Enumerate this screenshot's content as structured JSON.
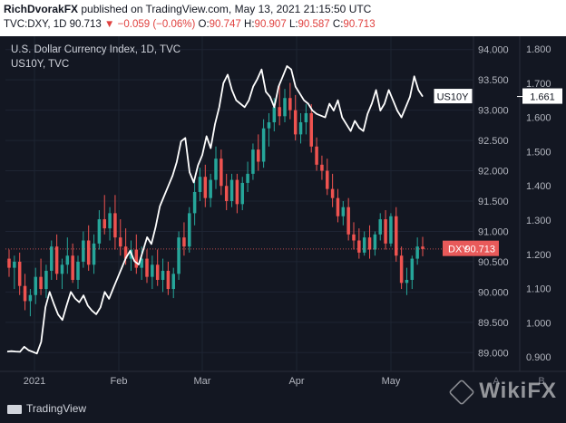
{
  "header": {
    "author": "RichDvorakFX",
    "published": "published on TradingView.com, May 13, 2021 21:15:50 UTC",
    "symbol": "TVC:DXY, 1D",
    "last": "90.713",
    "change": "−0.059 (−0.06%)",
    "open": "90.747",
    "high": "90.907",
    "low": "90.587",
    "close": "90.713",
    "colors": {
      "down": "#e0413f",
      "text": "#131722"
    }
  },
  "legend": {
    "main": "U.S. Dollar Currency Index, 1D, TVC",
    "overlay": "US10Y, TVC"
  },
  "chart_data": {
    "type": "candlestick+line",
    "x_labels": [
      "2021",
      "Feb",
      "Mar",
      "Apr",
      "May"
    ],
    "right_axis_dxy": {
      "ticks": [
        "94.000",
        "93.500",
        "93.000",
        "92.500",
        "92.000",
        "91.500",
        "91.000",
        "90.500",
        "90.000",
        "89.500",
        "89.000"
      ],
      "range": [
        88.9,
        94.1
      ]
    },
    "right_axis_us10y": {
      "ticks": [
        "1.800",
        "1.700",
        "1.600",
        "1.500",
        "1.400",
        "1.300",
        "1.200",
        "1.100",
        "1.000",
        "0.900"
      ],
      "range": [
        0.895,
        1.816
      ]
    },
    "scale_labels": [
      "A",
      "B"
    ],
    "price_tag_dxy": {
      "label": "DXY",
      "value": "90.713",
      "color": "#e85a5a"
    },
    "price_tag_us10y": {
      "label": "US10Y",
      "value": "1.661"
    },
    "colors": {
      "up": "#26a69a",
      "down": "#ef5350",
      "line": "#ffffff",
      "bg": "#131722",
      "grid": "#1e2433"
    },
    "candles": [
      {
        "o": 90.55,
        "h": 90.7,
        "l": 90.25,
        "c": 90.4
      },
      {
        "o": 90.4,
        "h": 90.6,
        "l": 90.05,
        "c": 90.5
      },
      {
        "o": 90.5,
        "h": 90.65,
        "l": 89.95,
        "c": 90.1
      },
      {
        "o": 90.1,
        "h": 90.3,
        "l": 89.7,
        "c": 89.85
      },
      {
        "o": 89.85,
        "h": 90.05,
        "l": 89.6,
        "c": 89.95
      },
      {
        "o": 89.95,
        "h": 90.4,
        "l": 89.8,
        "c": 90.25
      },
      {
        "o": 90.25,
        "h": 90.55,
        "l": 89.95,
        "c": 90.05
      },
      {
        "o": 90.05,
        "h": 90.45,
        "l": 89.9,
        "c": 90.35
      },
      {
        "o": 90.35,
        "h": 90.85,
        "l": 90.2,
        "c": 90.75
      },
      {
        "o": 90.75,
        "h": 90.95,
        "l": 90.2,
        "c": 90.3
      },
      {
        "o": 90.3,
        "h": 90.55,
        "l": 90.05,
        "c": 90.45
      },
      {
        "o": 90.45,
        "h": 90.9,
        "l": 90.3,
        "c": 90.6
      },
      {
        "o": 90.6,
        "h": 90.8,
        "l": 90.15,
        "c": 90.2
      },
      {
        "o": 90.2,
        "h": 90.6,
        "l": 90.05,
        "c": 90.5
      },
      {
        "o": 90.5,
        "h": 91.0,
        "l": 90.4,
        "c": 90.85
      },
      {
        "o": 90.85,
        "h": 91.1,
        "l": 90.35,
        "c": 90.45
      },
      {
        "o": 90.45,
        "h": 90.95,
        "l": 90.3,
        "c": 90.8
      },
      {
        "o": 90.8,
        "h": 91.35,
        "l": 90.7,
        "c": 91.2
      },
      {
        "o": 91.2,
        "h": 91.6,
        "l": 90.95,
        "c": 91.05
      },
      {
        "o": 91.05,
        "h": 91.4,
        "l": 90.85,
        "c": 91.3
      },
      {
        "o": 91.3,
        "h": 91.6,
        "l": 90.7,
        "c": 90.9
      },
      {
        "o": 90.9,
        "h": 91.2,
        "l": 90.6,
        "c": 90.75
      },
      {
        "o": 90.75,
        "h": 91.05,
        "l": 90.45,
        "c": 90.55
      },
      {
        "o": 90.55,
        "h": 90.85,
        "l": 90.35,
        "c": 90.7
      },
      {
        "o": 90.7,
        "h": 90.95,
        "l": 90.3,
        "c": 90.4
      },
      {
        "o": 90.4,
        "h": 90.75,
        "l": 90.2,
        "c": 90.55
      },
      {
        "o": 90.55,
        "h": 90.7,
        "l": 90.15,
        "c": 90.25
      },
      {
        "o": 90.25,
        "h": 90.6,
        "l": 90.05,
        "c": 90.45
      },
      {
        "o": 90.45,
        "h": 90.7,
        "l": 90.1,
        "c": 90.2
      },
      {
        "o": 90.2,
        "h": 90.55,
        "l": 90.0,
        "c": 90.35
      },
      {
        "o": 90.35,
        "h": 90.5,
        "l": 89.95,
        "c": 90.05
      },
      {
        "o": 90.05,
        "h": 90.4,
        "l": 89.9,
        "c": 90.3
      },
      {
        "o": 90.3,
        "h": 91.0,
        "l": 90.2,
        "c": 90.9
      },
      {
        "o": 90.9,
        "h": 91.15,
        "l": 90.6,
        "c": 90.75
      },
      {
        "o": 90.75,
        "h": 91.4,
        "l": 90.65,
        "c": 91.3
      },
      {
        "o": 91.3,
        "h": 91.85,
        "l": 91.1,
        "c": 91.65
      },
      {
        "o": 91.65,
        "h": 92.05,
        "l": 91.5,
        "c": 91.9
      },
      {
        "o": 91.9,
        "h": 92.1,
        "l": 91.4,
        "c": 91.55
      },
      {
        "o": 91.55,
        "h": 91.95,
        "l": 91.4,
        "c": 91.85
      },
      {
        "o": 91.85,
        "h": 92.4,
        "l": 91.7,
        "c": 92.2
      },
      {
        "o": 92.2,
        "h": 92.35,
        "l": 91.6,
        "c": 91.75
      },
      {
        "o": 91.75,
        "h": 91.95,
        "l": 91.35,
        "c": 91.5
      },
      {
        "o": 91.5,
        "h": 91.95,
        "l": 91.4,
        "c": 91.85
      },
      {
        "o": 91.85,
        "h": 91.95,
        "l": 91.3,
        "c": 91.45
      },
      {
        "o": 91.45,
        "h": 91.9,
        "l": 91.35,
        "c": 91.8
      },
      {
        "o": 91.8,
        "h": 92.15,
        "l": 91.65,
        "c": 91.95
      },
      {
        "o": 91.95,
        "h": 92.45,
        "l": 91.85,
        "c": 92.35
      },
      {
        "o": 92.35,
        "h": 92.6,
        "l": 92.0,
        "c": 92.15
      },
      {
        "o": 92.15,
        "h": 92.85,
        "l": 92.05,
        "c": 92.7
      },
      {
        "o": 92.7,
        "h": 92.95,
        "l": 92.4,
        "c": 92.8
      },
      {
        "o": 92.8,
        "h": 93.2,
        "l": 92.65,
        "c": 93.05
      },
      {
        "o": 93.05,
        "h": 93.45,
        "l": 92.75,
        "c": 92.9
      },
      {
        "o": 92.9,
        "h": 93.35,
        "l": 92.8,
        "c": 93.2
      },
      {
        "o": 93.2,
        "h": 93.45,
        "l": 92.85,
        "c": 93.0
      },
      {
        "o": 93.0,
        "h": 93.25,
        "l": 92.5,
        "c": 92.6
      },
      {
        "o": 92.6,
        "h": 92.95,
        "l": 92.45,
        "c": 92.8
      },
      {
        "o": 92.8,
        "h": 93.1,
        "l": 92.6,
        "c": 92.95
      },
      {
        "o": 92.95,
        "h": 93.1,
        "l": 92.3,
        "c": 92.4
      },
      {
        "o": 92.4,
        "h": 92.55,
        "l": 92.0,
        "c": 92.1
      },
      {
        "o": 92.1,
        "h": 92.25,
        "l": 91.85,
        "c": 92.0
      },
      {
        "o": 92.0,
        "h": 92.2,
        "l": 91.6,
        "c": 91.7
      },
      {
        "o": 91.7,
        "h": 91.95,
        "l": 91.4,
        "c": 91.55
      },
      {
        "o": 91.55,
        "h": 91.7,
        "l": 91.15,
        "c": 91.25
      },
      {
        "o": 91.25,
        "h": 91.5,
        "l": 91.1,
        "c": 91.4
      },
      {
        "o": 91.4,
        "h": 91.55,
        "l": 90.85,
        "c": 90.95
      },
      {
        "o": 90.95,
        "h": 91.15,
        "l": 90.7,
        "c": 90.85
      },
      {
        "o": 90.85,
        "h": 91.05,
        "l": 90.55,
        "c": 90.65
      },
      {
        "o": 90.65,
        "h": 91.0,
        "l": 90.6,
        "c": 90.9
      },
      {
        "o": 90.9,
        "h": 91.1,
        "l": 90.55,
        "c": 90.7
      },
      {
        "o": 90.7,
        "h": 91.0,
        "l": 90.6,
        "c": 90.95
      },
      {
        "o": 90.95,
        "h": 91.3,
        "l": 90.85,
        "c": 91.2
      },
      {
        "o": 91.2,
        "h": 91.35,
        "l": 90.7,
        "c": 90.8
      },
      {
        "o": 90.8,
        "h": 91.3,
        "l": 90.75,
        "c": 91.25
      },
      {
        "o": 91.25,
        "h": 91.4,
        "l": 90.5,
        "c": 90.6
      },
      {
        "o": 90.6,
        "h": 90.75,
        "l": 90.05,
        "c": 90.15
      },
      {
        "o": 90.15,
        "h": 90.4,
        "l": 89.95,
        "c": 90.2
      },
      {
        "o": 90.2,
        "h": 90.6,
        "l": 90.05,
        "c": 90.55
      },
      {
        "o": 90.55,
        "h": 90.9,
        "l": 90.45,
        "c": 90.75
      },
      {
        "o": 90.75,
        "h": 90.91,
        "l": 90.59,
        "c": 90.71
      }
    ],
    "us10y": [
      0.916,
      0.917,
      0.916,
      0.915,
      0.93,
      0.92,
      0.915,
      0.91,
      0.944,
      1.045,
      1.09,
      1.055,
      1.024,
      1.008,
      1.05,
      1.09,
      1.071,
      1.06,
      1.08,
      1.05,
      1.035,
      1.025,
      1.045,
      1.09,
      1.07,
      1.1,
      1.13,
      1.16,
      1.19,
      1.21,
      1.18,
      1.17,
      1.21,
      1.25,
      1.23,
      1.28,
      1.34,
      1.37,
      1.4,
      1.43,
      1.47,
      1.53,
      1.54,
      1.44,
      1.41,
      1.46,
      1.49,
      1.545,
      1.51,
      1.58,
      1.63,
      1.7,
      1.725,
      1.68,
      1.65,
      1.64,
      1.63,
      1.65,
      1.69,
      1.712,
      1.74,
      1.675,
      1.66,
      1.63,
      1.69,
      1.72,
      1.75,
      1.74,
      1.69,
      1.67,
      1.65,
      1.64,
      1.62,
      1.61,
      1.605,
      1.6,
      1.64,
      1.62,
      1.65,
      1.6,
      1.58,
      1.56,
      1.59,
      1.57,
      1.56,
      1.61,
      1.64,
      1.68,
      1.62,
      1.64,
      1.68,
      1.65,
      1.62,
      1.6,
      1.63,
      1.66,
      1.72,
      1.68,
      1.661
    ]
  },
  "footer": {
    "brand": "TradingView",
    "watermark": "WikiFX"
  }
}
